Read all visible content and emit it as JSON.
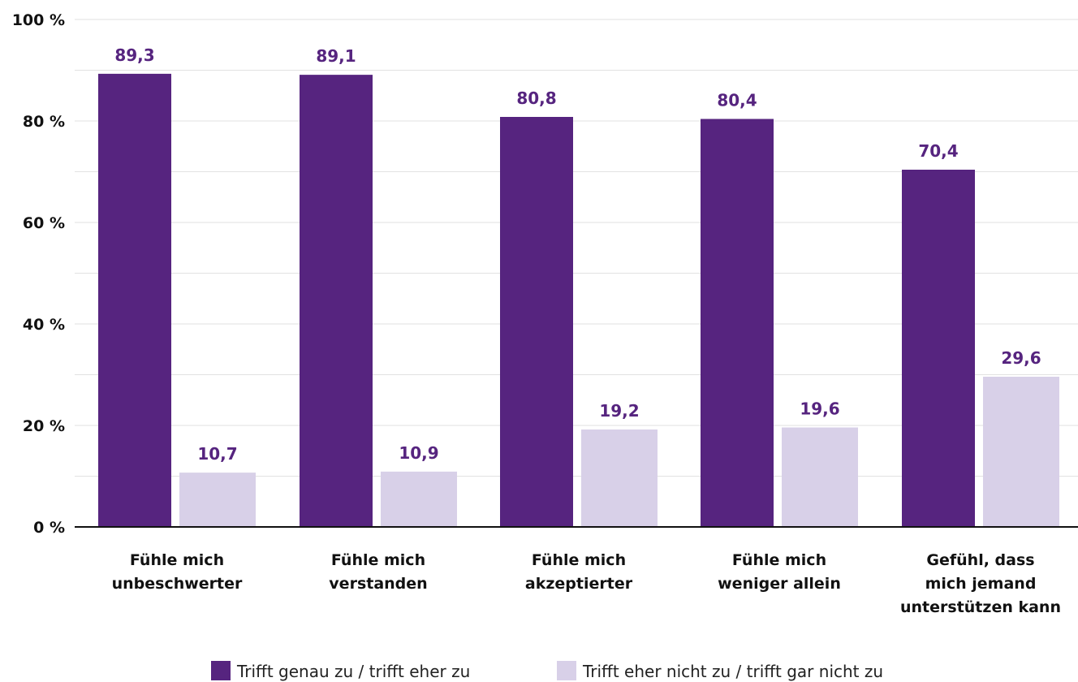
{
  "chart_data": {
    "type": "bar",
    "categories": [
      [
        "Fühle mich",
        "unbeschwerter"
      ],
      [
        "Fühle mich",
        "verstanden"
      ],
      [
        "Fühle mich",
        "akzeptierter"
      ],
      [
        "Fühle mich",
        "weniger allein"
      ],
      [
        "Gefühl, dass",
        "mich jemand",
        "unterstützen kann"
      ]
    ],
    "series": [
      {
        "name": "Trifft genau zu / trifft eher zu",
        "values": [
          89.3,
          89.1,
          80.8,
          80.4,
          70.4
        ],
        "value_labels": [
          "89,3",
          "89,1",
          "80,8",
          "80,4",
          "70,4"
        ],
        "color": "#56247f"
      },
      {
        "name": "Trifft eher nicht zu / trifft gar nicht zu",
        "values": [
          10.7,
          10.9,
          19.2,
          19.6,
          29.6
        ],
        "value_labels": [
          "10,7",
          "10,9",
          "19,2",
          "19,6",
          "29,6"
        ],
        "color": "#d8d0e8"
      }
    ],
    "y_ticks": [
      {
        "value": 0,
        "label": "0 %"
      },
      {
        "value": 20,
        "label": "20 %"
      },
      {
        "value": 40,
        "label": "40 %"
      },
      {
        "value": 60,
        "label": "60 %"
      },
      {
        "value": 80,
        "label": "80 %"
      },
      {
        "value": 100,
        "label": "100 %"
      }
    ],
    "ylim": [
      0,
      100
    ],
    "minor_gridlines_every": 10,
    "grid": true,
    "legend_position": "bottom-center",
    "value_label_color": "#56247f",
    "title": "",
    "xlabel": "",
    "ylabel": ""
  }
}
